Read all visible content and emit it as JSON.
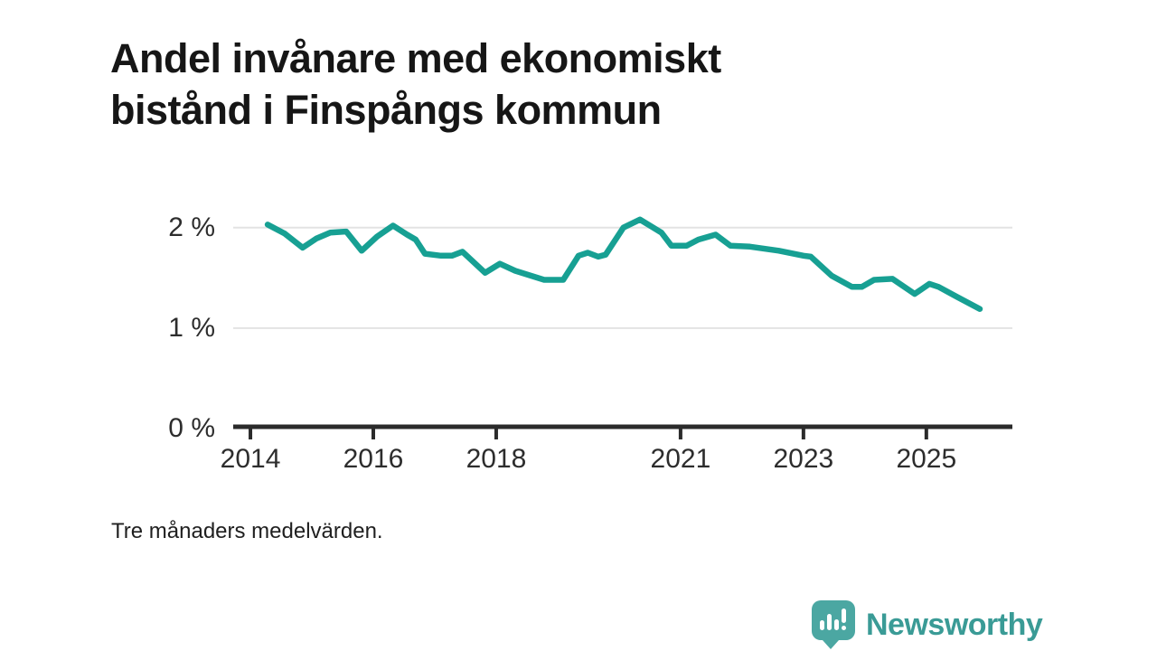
{
  "title": {
    "line1": "Andel invånare med ekonomiskt",
    "line2": "bistånd i Finspångs kommun"
  },
  "footnote": "Tre månaders medelvärden.",
  "logo": {
    "text": "Newsworthy",
    "icon": "newsworthy-speech-bubble-chart-icon"
  },
  "colors": {
    "line": "#17A093",
    "axis": "#2B2B2B",
    "grid": "#E3E3E3",
    "title_text": "#161616",
    "tick_text": "#2D2D2D",
    "logo_bubble": "#4BA7A2",
    "logo_text": "#3A9B96",
    "background": "#FFFFFF"
  },
  "chart_data": {
    "type": "line",
    "title": "Andel invånare med ekonomiskt bistånd i Finspångs kommun",
    "subtitle": "Tre månaders medelvärden.",
    "unit": "%",
    "xlabel": "",
    "ylabel": "",
    "grid": "horizontal-only",
    "legend_position": "none",
    "xlim": [
      2013.72,
      2026.4
    ],
    "ylim": [
      0,
      2.6
    ],
    "x_ticks": [
      2014,
      2016,
      2018,
      2021,
      2023,
      2025
    ],
    "x_tick_labels": [
      "2014",
      "2016",
      "2018",
      "2021",
      "2023",
      "2025"
    ],
    "y_ticks": [
      0,
      1,
      2
    ],
    "y_tick_labels": [
      "0 %",
      "1 %",
      "2 %"
    ],
    "series": [
      {
        "name": "Andel invånare med ekonomiskt bistånd",
        "color": "#17A093",
        "points": [
          [
            2014.28,
            2.03
          ],
          [
            2014.56,
            1.94
          ],
          [
            2014.85,
            1.8
          ],
          [
            2015.07,
            1.89
          ],
          [
            2015.3,
            1.95
          ],
          [
            2015.56,
            1.96
          ],
          [
            2015.81,
            1.77
          ],
          [
            2016.06,
            1.91
          ],
          [
            2016.32,
            2.02
          ],
          [
            2016.55,
            1.93
          ],
          [
            2016.69,
            1.88
          ],
          [
            2016.84,
            1.74
          ],
          [
            2017.1,
            1.72
          ],
          [
            2017.28,
            1.72
          ],
          [
            2017.45,
            1.76
          ],
          [
            2017.82,
            1.55
          ],
          [
            2018.06,
            1.64
          ],
          [
            2018.31,
            1.57
          ],
          [
            2018.78,
            1.48
          ],
          [
            2019.09,
            1.48
          ],
          [
            2019.34,
            1.72
          ],
          [
            2019.49,
            1.75
          ],
          [
            2019.66,
            1.71
          ],
          [
            2019.78,
            1.73
          ],
          [
            2020.07,
            2.0
          ],
          [
            2020.34,
            2.08
          ],
          [
            2020.69,
            1.95
          ],
          [
            2020.85,
            1.82
          ],
          [
            2021.1,
            1.82
          ],
          [
            2021.29,
            1.88
          ],
          [
            2021.57,
            1.93
          ],
          [
            2021.81,
            1.82
          ],
          [
            2022.13,
            1.81
          ],
          [
            2022.6,
            1.77
          ],
          [
            2023.0,
            1.72
          ],
          [
            2023.12,
            1.71
          ],
          [
            2023.46,
            1.52
          ],
          [
            2023.79,
            1.41
          ],
          [
            2023.95,
            1.41
          ],
          [
            2024.15,
            1.48
          ],
          [
            2024.45,
            1.49
          ],
          [
            2024.81,
            1.34
          ],
          [
            2025.05,
            1.44
          ],
          [
            2025.2,
            1.41
          ],
          [
            2025.5,
            1.31
          ],
          [
            2025.87,
            1.19
          ]
        ]
      }
    ]
  }
}
